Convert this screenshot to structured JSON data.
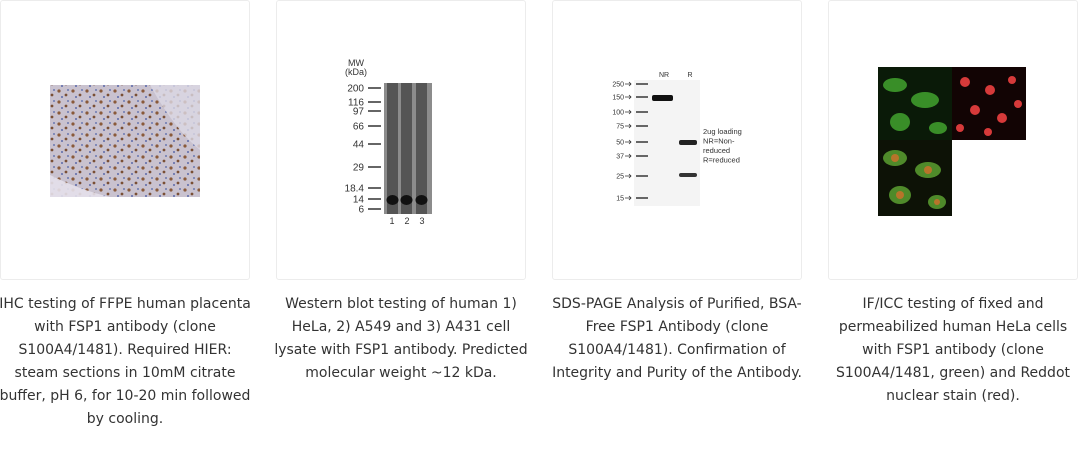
{
  "gallery": [
    {
      "caption": "IHC testing of FFPE human placenta with FSP1 antibody (clone S100A4/1481). Required HIER: steam sections in 10mM citrate buffer, pH 6, for 10-20 min followed by cooling."
    },
    {
      "caption": "Western blot testing of human 1) HeLa, 2) A549 and 3) A431 cell lysate with FSP1 antibody. Predicted molecular weight ~12 kDa.",
      "image": {
        "mw_label": [
          "MW",
          "(kDa)"
        ],
        "markers": [
          "200",
          "116",
          "97",
          "66",
          "44",
          "29",
          "18.4",
          "14",
          "6"
        ],
        "lanes": [
          "1",
          "2",
          "3"
        ]
      }
    },
    {
      "caption": "SDS-PAGE Analysis of Purified, BSA-Free FSP1 Antibody (clone S100A4/1481). Confirmation of Integrity and Purity of the Antibody.",
      "image": {
        "markers": [
          "250",
          "150",
          "100",
          "75",
          "50",
          "37",
          "25",
          "15"
        ],
        "lanes": [
          "NR",
          "R"
        ],
        "note": [
          "2ug loading",
          "NR=Non-",
          "reduced",
          "R=reduced"
        ]
      }
    },
    {
      "caption": "IF/ICC testing of fixed and permeabilized human HeLa cells with FSP1 antibody (clone S100A4/1481, green) and Reddot nuclear stain (red)."
    }
  ]
}
